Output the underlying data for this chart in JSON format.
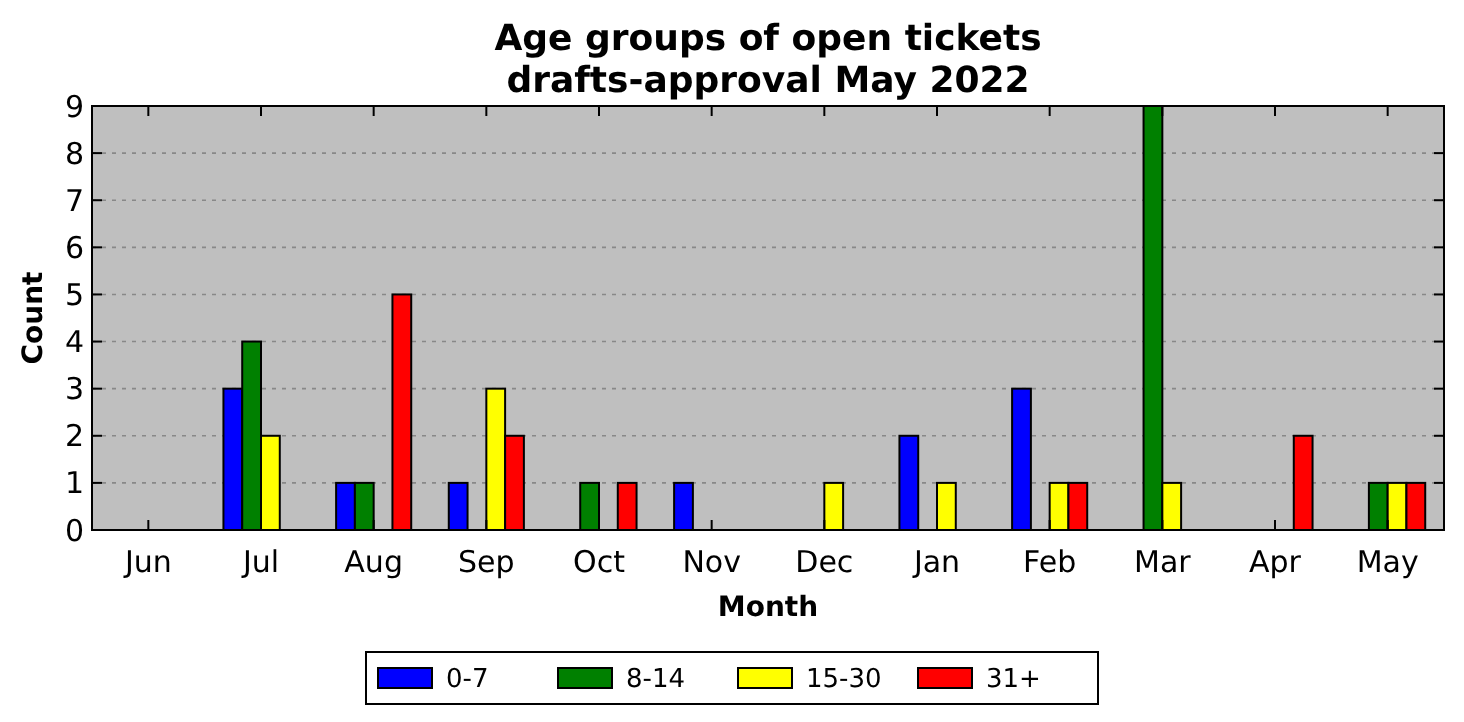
{
  "chart_data": {
    "type": "bar",
    "title": "Age groups of open tickets\ndrafts-approval May 2022",
    "xlabel": "Month",
    "ylabel": "Count",
    "categories": [
      "Jun",
      "Jul",
      "Aug",
      "Sep",
      "Oct",
      "Nov",
      "Dec",
      "Jan",
      "Feb",
      "Mar",
      "Apr",
      "May"
    ],
    "series": [
      {
        "name": "0-7",
        "color": "#0000ff",
        "values": [
          0,
          3,
          1,
          1,
          0,
          1,
          0,
          2,
          3,
          0,
          0,
          0
        ]
      },
      {
        "name": "8-14",
        "color": "#008000",
        "values": [
          0,
          4,
          1,
          0,
          1,
          0,
          0,
          0,
          0,
          9,
          0,
          1
        ]
      },
      {
        "name": "15-30",
        "color": "#ffff00",
        "values": [
          0,
          2,
          0,
          3,
          0,
          0,
          1,
          1,
          1,
          1,
          0,
          1
        ]
      },
      {
        "name": "31+",
        "color": "#ff0000",
        "values": [
          0,
          0,
          5,
          2,
          1,
          0,
          0,
          0,
          1,
          0,
          2,
          1
        ]
      }
    ],
    "ylim": [
      0,
      9
    ],
    "yticks": [
      0,
      1,
      2,
      3,
      4,
      5,
      6,
      7,
      8,
      9
    ],
    "grid": "y",
    "legend": "bottom"
  }
}
